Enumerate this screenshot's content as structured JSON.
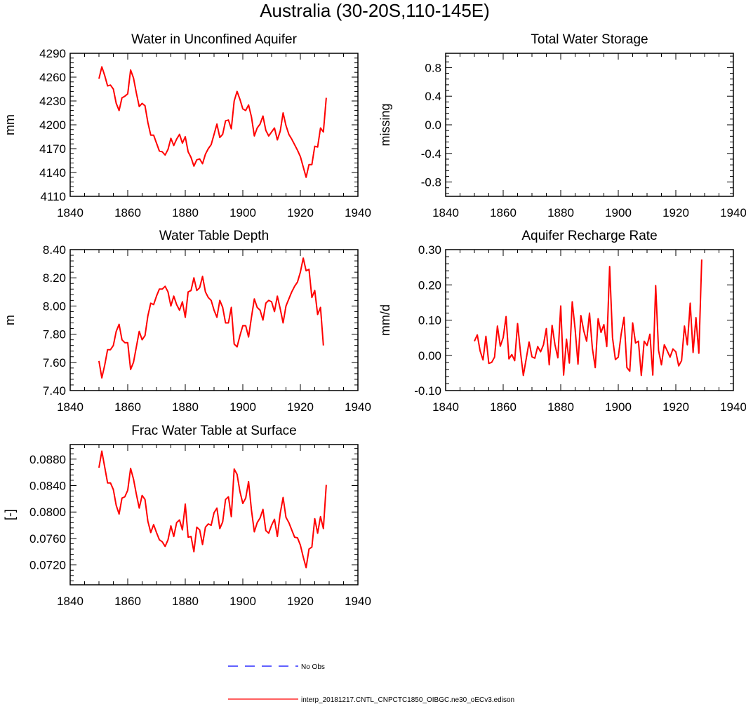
{
  "figure": {
    "title": "Australia (30-20S,110-145E)",
    "colors": {
      "model": "#ff0000",
      "obs": "#0000ff",
      "axis": "#000000"
    }
  },
  "legend": {
    "obs_label": "No Obs",
    "model_label": "interp_20181217.CNTL_CNPCTC1850_OIBGC.ne30_oECv3.edison"
  },
  "chart_data": [
    {
      "type": "line",
      "title": "Water in Unconfined Aquifer",
      "xlabel": "",
      "ylabel": "mm",
      "xlim": [
        1840,
        1940
      ],
      "ylim": [
        4110,
        4290
      ],
      "xticks": [
        "1840",
        "1860",
        "1880",
        "1900",
        "1920",
        "1940"
      ],
      "yticks": [
        "4110",
        "4140",
        "4170",
        "4200",
        "4230",
        "4260",
        "4290"
      ],
      "x_start": 1850,
      "series": [
        {
          "name": "interp_20181217.CNTL_CNPCTC1850_OIBGC.ne30_oECv3.edison",
          "values": [
            4258,
            4273,
            4262,
            4249,
            4250,
            4245,
            4227,
            4218,
            4234,
            4236,
            4239,
            4269,
            4259,
            4240,
            4223,
            4227,
            4224,
            4203,
            4187,
            4187,
            4177,
            4167,
            4166,
            4162,
            4169,
            4183,
            4174,
            4182,
            4188,
            4177,
            4185,
            4166,
            4159,
            4148,
            4156,
            4157,
            4151,
            4163,
            4170,
            4175,
            4188,
            4201,
            4184,
            4188,
            4205,
            4206,
            4195,
            4230,
            4242,
            4232,
            4220,
            4218,
            4225,
            4210,
            4186,
            4196,
            4201,
            4211,
            4193,
            4186,
            4191,
            4196,
            4181,
            4192,
            4215,
            4199,
            4188,
            4182,
            4175,
            4168,
            4160,
            4147,
            4134,
            4150,
            4150,
            4173,
            4172,
            4196,
            4191,
            4234
          ]
        }
      ]
    },
    {
      "type": "line",
      "title": "Total Water Storage",
      "xlabel": "",
      "ylabel": "missing",
      "xlim": [
        1840,
        1940
      ],
      "ylim": [
        -1.0,
        1.0
      ],
      "xticks": [
        "1840",
        "1860",
        "1880",
        "1900",
        "1920",
        "1940"
      ],
      "yticks": [
        "-0.8",
        "-0.4",
        "0.0",
        "0.4",
        "0.8"
      ],
      "series": []
    },
    {
      "type": "line",
      "title": "Water Table Depth",
      "xlabel": "",
      "ylabel": "m",
      "xlim": [
        1840,
        1940
      ],
      "ylim": [
        7.4,
        8.4
      ],
      "xticks": [
        "1840",
        "1860",
        "1880",
        "1900",
        "1920",
        "1940"
      ],
      "yticks": [
        "7.40",
        "7.60",
        "7.80",
        "8.00",
        "8.20",
        "8.40"
      ],
      "x_start": 1850,
      "series": [
        {
          "name": "interp_20181217.CNTL_CNPCTC1850_OIBGC.ne30_oECv3.edison",
          "values": [
            7.61,
            7.49,
            7.58,
            7.69,
            7.69,
            7.72,
            7.82,
            7.87,
            7.76,
            7.74,
            7.74,
            7.55,
            7.6,
            7.71,
            7.82,
            7.76,
            7.79,
            7.93,
            8.02,
            8.01,
            8.07,
            8.12,
            8.12,
            8.14,
            8.1,
            8.0,
            8.07,
            8.01,
            7.97,
            8.03,
            7.92,
            8.1,
            8.11,
            8.2,
            8.11,
            8.13,
            8.21,
            8.1,
            8.06,
            8.04,
            7.97,
            7.92,
            8.04,
            7.99,
            7.88,
            7.88,
            7.99,
            7.73,
            7.71,
            7.79,
            7.86,
            7.86,
            7.78,
            7.92,
            8.05,
            7.99,
            7.97,
            7.9,
            8.02,
            8.04,
            8.03,
            7.96,
            8.07,
            7.98,
            7.88,
            8.0,
            8.05,
            8.1,
            8.14,
            8.17,
            8.24,
            8.34,
            8.25,
            8.26,
            8.06,
            8.11,
            7.94,
            7.99,
            7.72
          ]
        }
      ]
    },
    {
      "type": "line",
      "title": "Aquifer Recharge Rate",
      "xlabel": "",
      "ylabel": "mm/d",
      "xlim": [
        1840,
        1940
      ],
      "ylim": [
        -0.1,
        0.3
      ],
      "xticks": [
        "1840",
        "1860",
        "1880",
        "1900",
        "1920",
        "1940"
      ],
      "yticks": [
        "-0.10",
        "0.00",
        "0.10",
        "0.20",
        "0.30"
      ],
      "x_start": 1850,
      "series": [
        {
          "name": "interp_20181217.CNTL_CNPCTC1850_OIBGC.ne30_oECv3.edison",
          "values": [
            0.04,
            0.058,
            0.012,
            -0.013,
            0.054,
            -0.023,
            -0.02,
            -0.005,
            0.083,
            0.026,
            0.05,
            0.11,
            -0.01,
            0.002,
            -0.015,
            0.09,
            0.01,
            -0.057,
            -0.01,
            0.038,
            -0.004,
            -0.008,
            0.025,
            0.01,
            0.03,
            0.076,
            -0.027,
            0.085,
            0.03,
            -0.007,
            0.14,
            -0.056,
            0.046,
            -0.022,
            0.152,
            0.075,
            -0.025,
            0.113,
            0.07,
            0.04,
            0.12,
            0.02,
            -0.035,
            0.104,
            0.065,
            0.087,
            0.025,
            0.252,
            0.05,
            -0.012,
            -0.005,
            0.06,
            0.108,
            -0.035,
            -0.045,
            0.092,
            0.035,
            0.04,
            -0.057,
            0.04,
            0.028,
            0.06,
            -0.056,
            0.198,
            0.014,
            -0.027,
            0.03,
            0.013,
            -0.005,
            0.018,
            0.01,
            -0.03,
            -0.015,
            0.083,
            0.03,
            0.148,
            0.008,
            0.107,
            0.006,
            0.272
          ]
        }
      ]
    },
    {
      "type": "line",
      "title": "Frac Water Table at Surface",
      "xlabel": "",
      "ylabel": "[-]",
      "xlim": [
        1840,
        1940
      ],
      "ylim": [
        0.069,
        0.0902
      ],
      "xticks": [
        "1840",
        "1860",
        "1880",
        "1900",
        "1920",
        "1940"
      ],
      "yticks": [
        "0.0720",
        "0.0760",
        "0.0800",
        "0.0840",
        "0.0880"
      ],
      "x_start": 1850,
      "series": [
        {
          "name": "interp_20181217.CNTL_CNPCTC1850_OIBGC.ne30_oECv3.edison",
          "values": [
            0.0867,
            0.0892,
            0.0868,
            0.0844,
            0.0844,
            0.0834,
            0.081,
            0.0797,
            0.0821,
            0.0823,
            0.0833,
            0.0866,
            0.085,
            0.0827,
            0.0806,
            0.0825,
            0.0819,
            0.0786,
            0.0769,
            0.0781,
            0.0769,
            0.0758,
            0.0755,
            0.0748,
            0.0758,
            0.0779,
            0.0763,
            0.0784,
            0.0788,
            0.0773,
            0.0812,
            0.0762,
            0.0763,
            0.074,
            0.0777,
            0.0773,
            0.0751,
            0.0777,
            0.0782,
            0.078,
            0.0799,
            0.0806,
            0.0775,
            0.0785,
            0.0819,
            0.0823,
            0.0793,
            0.0865,
            0.0857,
            0.0831,
            0.0813,
            0.0821,
            0.0846,
            0.0803,
            0.077,
            0.0784,
            0.0791,
            0.0804,
            0.0772,
            0.0768,
            0.078,
            0.0789,
            0.0763,
            0.0798,
            0.0822,
            0.0792,
            0.0784,
            0.0773,
            0.0762,
            0.0761,
            0.075,
            0.0732,
            0.0716,
            0.0744,
            0.0747,
            0.079,
            0.0768,
            0.0793,
            0.0775,
            0.0841
          ]
        }
      ]
    }
  ]
}
